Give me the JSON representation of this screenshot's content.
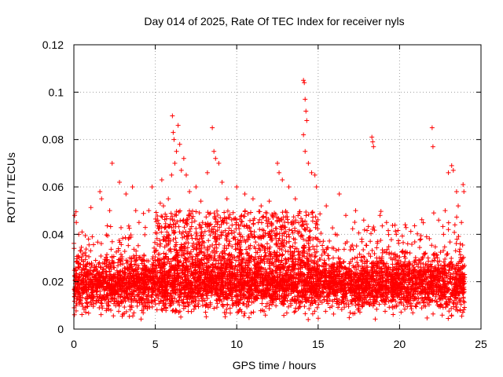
{
  "chart_data": {
    "type": "scatter",
    "title": "Day 014 of 2025, Rate Of TEC Index for receiver nyls",
    "xlabel": "GPS time / hours",
    "ylabel": "ROTI / TECUs",
    "xlim": [
      0,
      25
    ],
    "ylim": [
      0,
      0.12
    ],
    "x_ticks": [
      0,
      5,
      10,
      15,
      20,
      25
    ],
    "x_tick_labels": [
      "0",
      "5",
      "10",
      "15",
      "20",
      "25"
    ],
    "y_ticks": [
      0,
      0.02,
      0.04,
      0.06,
      0.08,
      0.1,
      0.12
    ],
    "y_tick_labels": [
      "0",
      "0.02",
      "0.04",
      "0.06",
      "0.08",
      "0.1",
      "0.12"
    ],
    "grid": true,
    "marker": "+",
    "color": "#ff0000",
    "series": [
      {
        "name": "ROTI",
        "description_of_bulk": "dense band of points between ~0.005 and ~0.035 TECU/s across 0-24 h",
        "points": [
          [
            0.05,
            0.048
          ],
          [
            0.15,
            0.045
          ],
          [
            0.3,
            0.04
          ],
          [
            0.5,
            0.041
          ],
          [
            0.9,
            0.038
          ],
          [
            1.6,
            0.058
          ],
          [
            1.7,
            0.055
          ],
          [
            2.2,
            0.05
          ],
          [
            2.35,
            0.07
          ],
          [
            2.8,
            0.062
          ],
          [
            3.2,
            0.057
          ],
          [
            3.6,
            0.06
          ],
          [
            3.8,
            0.05
          ],
          [
            4.0,
            0.045
          ],
          [
            4.6,
            0.05
          ],
          [
            4.8,
            0.06
          ],
          [
            5.4,
            0.063
          ],
          [
            5.5,
            0.052
          ],
          [
            5.8,
            0.055
          ],
          [
            6.0,
            0.065
          ],
          [
            6.05,
            0.09
          ],
          [
            6.1,
            0.083
          ],
          [
            6.15,
            0.08
          ],
          [
            6.2,
            0.07
          ],
          [
            6.3,
            0.075
          ],
          [
            6.4,
            0.086
          ],
          [
            6.5,
            0.078
          ],
          [
            6.6,
            0.067
          ],
          [
            6.75,
            0.072
          ],
          [
            6.9,
            0.065
          ],
          [
            7.1,
            0.058
          ],
          [
            7.5,
            0.06
          ],
          [
            7.8,
            0.054
          ],
          [
            8.2,
            0.066
          ],
          [
            8.5,
            0.085
          ],
          [
            8.6,
            0.075
          ],
          [
            8.7,
            0.072
          ],
          [
            8.9,
            0.07
          ],
          [
            9.1,
            0.062
          ],
          [
            9.4,
            0.055
          ],
          [
            10.0,
            0.06
          ],
          [
            10.5,
            0.057
          ],
          [
            11.0,
            0.055
          ],
          [
            11.5,
            0.052
          ],
          [
            12.0,
            0.054
          ],
          [
            12.5,
            0.07
          ],
          [
            12.6,
            0.066
          ],
          [
            12.8,
            0.063
          ],
          [
            13.2,
            0.06
          ],
          [
            13.6,
            0.055
          ],
          [
            14.1,
            0.105
          ],
          [
            14.15,
            0.104
          ],
          [
            14.2,
            0.097
          ],
          [
            14.25,
            0.092
          ],
          [
            14.3,
            0.088
          ],
          [
            14.1,
            0.082
          ],
          [
            14.2,
            0.075
          ],
          [
            14.4,
            0.07
          ],
          [
            14.6,
            0.066
          ],
          [
            14.8,
            0.065
          ],
          [
            14.9,
            0.06
          ],
          [
            15.5,
            0.052
          ],
          [
            16.3,
            0.057
          ],
          [
            16.7,
            0.048
          ],
          [
            17.3,
            0.05
          ],
          [
            17.8,
            0.046
          ],
          [
            18.3,
            0.081
          ],
          [
            18.35,
            0.079
          ],
          [
            18.4,
            0.077
          ],
          [
            18.8,
            0.048
          ],
          [
            19.2,
            0.045
          ],
          [
            19.8,
            0.04
          ],
          [
            20.5,
            0.036
          ],
          [
            21.3,
            0.038
          ],
          [
            22.0,
            0.085
          ],
          [
            22.05,
            0.077
          ],
          [
            22.1,
            0.049
          ],
          [
            22.4,
            0.046
          ],
          [
            22.8,
            0.05
          ],
          [
            23.0,
            0.066
          ],
          [
            23.2,
            0.069
          ],
          [
            23.3,
            0.067
          ],
          [
            23.5,
            0.058
          ],
          [
            23.6,
            0.052
          ],
          [
            23.9,
            0.061
          ],
          [
            23.95,
            0.058
          ],
          [
            23.8,
            0.045
          ],
          [
            23.4,
            0.044
          ],
          [
            23.0,
            0.042
          ],
          [
            22.7,
            0.04
          ]
        ]
      }
    ]
  }
}
